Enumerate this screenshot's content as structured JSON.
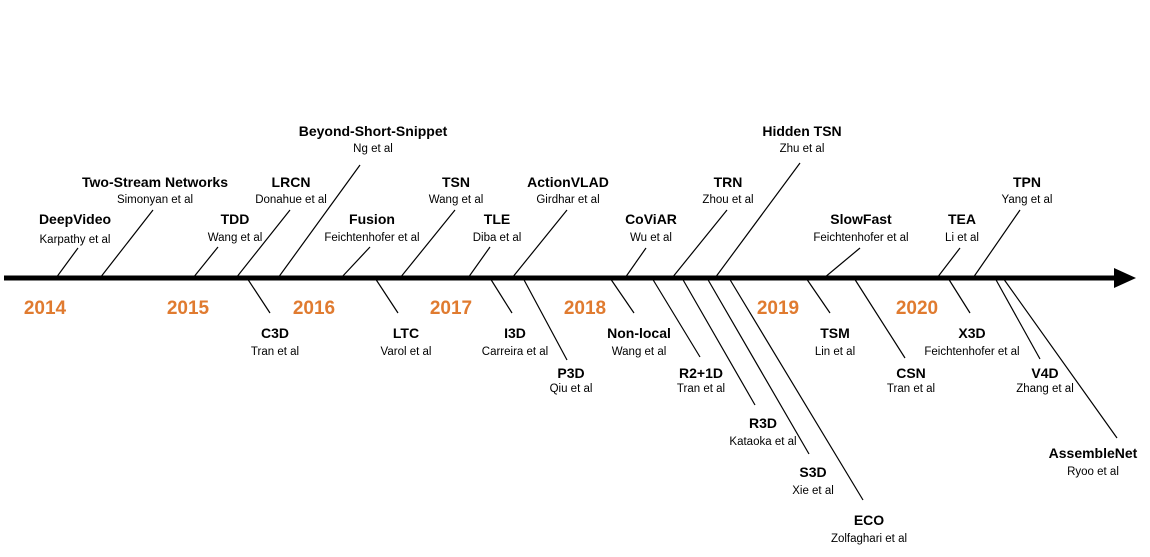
{
  "colors": {
    "year": "#e07b30",
    "axis": "#000000",
    "text": "#000000"
  },
  "years": [
    "2014",
    "2015",
    "2016",
    "2017",
    "2018",
    "2019",
    "2020"
  ],
  "methods": [
    {
      "name": "DeepVideo",
      "authors": "Karpathy et al",
      "side": "above"
    },
    {
      "name": "Two-Stream Networks",
      "authors": "Simonyan et al",
      "side": "above"
    },
    {
      "name": "TDD",
      "authors": "Wang et al",
      "side": "above"
    },
    {
      "name": "LRCN",
      "authors": "Donahue et al",
      "side": "above"
    },
    {
      "name": "C3D",
      "authors": "Tran et al",
      "side": "below"
    },
    {
      "name": "Beyond-Short-Snippet",
      "authors": "Ng et al",
      "side": "above"
    },
    {
      "name": "Fusion",
      "authors": "Feichtenhofer et al",
      "side": "above"
    },
    {
      "name": "LTC",
      "authors": "Varol et al",
      "side": "below"
    },
    {
      "name": "TSN",
      "authors": "Wang et al",
      "side": "above"
    },
    {
      "name": "TLE",
      "authors": "Diba et al",
      "side": "above"
    },
    {
      "name": "I3D",
      "authors": "Carreira et al",
      "side": "below"
    },
    {
      "name": "ActionVLAD",
      "authors": "Girdhar et al",
      "side": "above"
    },
    {
      "name": "P3D",
      "authors": "Qiu et al",
      "side": "below"
    },
    {
      "name": "Non-local",
      "authors": "Wang et al",
      "side": "below"
    },
    {
      "name": "CoViAR",
      "authors": "Wu et al",
      "side": "above"
    },
    {
      "name": "R2+1D",
      "authors": "Tran et al",
      "side": "below"
    },
    {
      "name": "TRN",
      "authors": "Zhou et al",
      "side": "above"
    },
    {
      "name": "R3D",
      "authors": "Kataoka et al",
      "side": "below"
    },
    {
      "name": "Hidden TSN",
      "authors": "Zhu et al",
      "side": "above"
    },
    {
      "name": "S3D",
      "authors": "Xie et al",
      "side": "below"
    },
    {
      "name": "ECO",
      "authors": "Zolfaghari et al",
      "side": "below"
    },
    {
      "name": "TSM",
      "authors": "Lin et al",
      "side": "below"
    },
    {
      "name": "SlowFast",
      "authors": "Feichtenhofer et al",
      "side": "above"
    },
    {
      "name": "CSN",
      "authors": "Tran et al",
      "side": "below"
    },
    {
      "name": "TEA",
      "authors": "Li et al",
      "side": "above"
    },
    {
      "name": "X3D",
      "authors": "Feichtenhofer et al",
      "side": "below"
    },
    {
      "name": "TPN",
      "authors": "Yang et al",
      "side": "above"
    },
    {
      "name": "V4D",
      "authors": "Zhang et al",
      "side": "below"
    },
    {
      "name": "AssembleNet",
      "authors": "Ryoo et al",
      "side": "below"
    }
  ]
}
